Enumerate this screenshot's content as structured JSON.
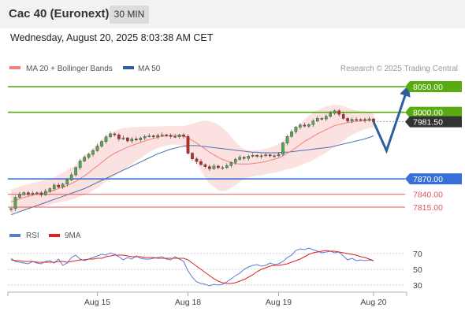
{
  "header": {
    "title": "Cac 40 (Euronext)",
    "timeframe": "30 MIN"
  },
  "timestamp": "Wednesday, August 20, 2025 8:03:38 AM CET",
  "colors": {
    "green_level": "#5aaa12",
    "blue_level": "#3a6fd8",
    "red_level": "#e05858",
    "bollinger_fill": "#fbd9d9",
    "ma20": "#f08080",
    "ma50": "#4a72b0",
    "arrow": "#2d5f9e",
    "candle_up": "#4caf50",
    "candle_down": "#c62828",
    "rsi": "#5b7bd5",
    "rsi_ma": "#e02020"
  },
  "chart_data": [
    {
      "type": "candlestick",
      "legend": [
        {
          "name": "MA 20 + Bollinger Bands",
          "color": "#f08080"
        },
        {
          "name": "MA 50",
          "color": "#2d5f9e"
        }
      ],
      "legend_position": "top-left",
      "watermark": "Research © 2025 Trading Central",
      "ylim": [
        7795,
        8070
      ],
      "levels": [
        {
          "value": 8050.0,
          "label": "8050.00",
          "kind": "resistance",
          "color": "#5aaa12"
        },
        {
          "value": 8000.0,
          "label": "8000.00",
          "kind": "resistance",
          "color": "#5aaa12"
        },
        {
          "value": 7981.5,
          "label": "7981.50",
          "kind": "last-price",
          "color": "#333333"
        },
        {
          "value": 7870.0,
          "label": "7870.00",
          "kind": "pivot",
          "color": "#3a6fd8"
        },
        {
          "value": 7840.0,
          "label": "7840.00",
          "kind": "support",
          "color": "#e05858"
        },
        {
          "value": 7815.0,
          "label": "7815.00",
          "kind": "support",
          "color": "#e05858"
        }
      ],
      "x_ticks": [
        {
          "label": "Aug 15",
          "index": 20
        },
        {
          "label": "Aug 18",
          "index": 41
        },
        {
          "label": "Aug 19",
          "index": 62
        },
        {
          "label": "Aug 20",
          "index": 84
        }
      ],
      "closes": [
        7812,
        7834,
        7840,
        7843,
        7840,
        7842,
        7843,
        7839,
        7846,
        7851,
        7858,
        7854,
        7860,
        7868,
        7878,
        7892,
        7905,
        7912,
        7918,
        7925,
        7934,
        7943,
        7952,
        7958,
        7956,
        7948,
        7950,
        7944,
        7948,
        7946,
        7950,
        7953,
        7954,
        7952,
        7955,
        7956,
        7955,
        7953,
        7952,
        7956,
        7953,
        7920,
        7909,
        7904,
        7898,
        7894,
        7890,
        7895,
        7892,
        7892,
        7896,
        7902,
        7908,
        7912,
        7910,
        7914,
        7916,
        7914,
        7915,
        7917,
        7915,
        7915,
        7918,
        7940,
        7953,
        7962,
        7971,
        7975,
        7973,
        7976,
        7983,
        7988,
        7987,
        7992,
        7998,
        8003,
        7996,
        7988,
        7983,
        7986,
        7985,
        7986,
        7984,
        7987,
        7981.5
      ],
      "ma20": [
        7825,
        7828,
        7831,
        7834,
        7836,
        7838,
        7840,
        7841,
        7843,
        7845,
        7848,
        7851,
        7854,
        7857,
        7861,
        7865,
        7871,
        7876,
        7882,
        7889,
        7895,
        7902,
        7909,
        7915,
        7920,
        7924,
        7928,
        7932,
        7935,
        7938,
        7941,
        7944,
        7947,
        7949,
        7951,
        7953,
        7954,
        7955,
        7955,
        7955,
        7954,
        7950,
        7945,
        7940,
        7934,
        7928,
        7922,
        7917,
        7912,
        7908,
        7905,
        7902,
        7900,
        7899,
        7899,
        7899,
        7900,
        7901,
        7902,
        7904,
        7906,
        7908,
        7911,
        7915,
        7920,
        7925,
        7931,
        7937,
        7943,
        7948,
        7953,
        7958,
        7962,
        7966,
        7970,
        7974,
        7976,
        7978,
        7980,
        7981,
        7982,
        7983,
        7984,
        7985,
        7985
      ],
      "ma50": [
        7800,
        7803,
        7806,
        7809,
        7812,
        7815,
        7818,
        7821,
        7824,
        7827,
        7830,
        7833,
        7836,
        7839,
        7842,
        7845,
        7848,
        7851,
        7855,
        7859,
        7863,
        7867,
        7871,
        7875,
        7879,
        7883,
        7887,
        7891,
        7895,
        7899,
        7903,
        7907,
        7911,
        7915,
        7919,
        7922,
        7925,
        7928,
        7930,
        7932,
        7934,
        7935,
        7935,
        7935,
        7934,
        7933,
        7932,
        7931,
        7930,
        7929,
        7928,
        7927,
        7926,
        7925,
        7924,
        7923,
        7922,
        7922,
        7921,
        7921,
        7921,
        7921,
        7921,
        7922,
        7922,
        7923,
        7924,
        7925,
        7926,
        7927,
        7928,
        7929,
        7930,
        7931,
        7932,
        7934,
        7936,
        7938,
        7940,
        7942,
        7944,
        7946,
        7948,
        7951,
        7954
      ],
      "bollinger_upper": [
        7850,
        7852,
        7855,
        7858,
        7860,
        7862,
        7864,
        7866,
        7868,
        7871,
        7874,
        7878,
        7882,
        7887,
        7892,
        7898,
        7906,
        7914,
        7922,
        7930,
        7938,
        7946,
        7953,
        7959,
        7964,
        7967,
        7969,
        7970,
        7971,
        7971,
        7972,
        7972,
        7972,
        7972,
        7972,
        7973,
        7973,
        7973,
        7973,
        7973,
        7973,
        7975,
        7978,
        7980,
        7982,
        7984,
        7983,
        7980,
        7976,
        7970,
        7962,
        7952,
        7942,
        7934,
        7928,
        7926,
        7925,
        7926,
        7927,
        7929,
        7931,
        7934,
        7938,
        7944,
        7951,
        7960,
        7969,
        7978,
        7986,
        7993,
        7999,
        8004,
        8008,
        8011,
        8013,
        8014,
        8014,
        8012,
        8009,
        8006,
        8004,
        8002,
        8001,
        8000,
        8000
      ],
      "bollinger_lower": [
        7800,
        7804,
        7807,
        7810,
        7812,
        7814,
        7816,
        7816,
        7818,
        7819,
        7822,
        7824,
        7826,
        7827,
        7830,
        7832,
        7836,
        7838,
        7842,
        7848,
        7852,
        7858,
        7865,
        7871,
        7876,
        7881,
        7887,
        7894,
        7899,
        7905,
        7910,
        7916,
        7922,
        7926,
        7930,
        7933,
        7935,
        7937,
        7937,
        7937,
        7935,
        7925,
        7912,
        7900,
        7886,
        7872,
        7861,
        7854,
        7848,
        7846,
        7848,
        7852,
        7858,
        7864,
        7870,
        7872,
        7875,
        7876,
        7877,
        7879,
        7881,
        7882,
        7884,
        7886,
        7889,
        7890,
        7893,
        7896,
        7900,
        7903,
        7907,
        7912,
        7916,
        7921,
        7927,
        7934,
        7938,
        7944,
        7951,
        7956,
        7960,
        7964,
        7967,
        7970,
        7970
      ],
      "forecast_path": [
        {
          "index": 84,
          "value": 7981.5
        },
        {
          "index": 87,
          "value": 7925
        },
        {
          "index": 92,
          "value": 8050
        }
      ]
    },
    {
      "type": "line",
      "legend": [
        {
          "name": "RSI",
          "color": "#5b7bd5"
        },
        {
          "name": "9MA",
          "color": "#e02020"
        }
      ],
      "legend_position": "top-left",
      "ylim": [
        20,
        80
      ],
      "y_ticks": [
        70,
        50,
        30
      ],
      "reference_lines": [
        70,
        50,
        30
      ],
      "rsi": [
        64,
        60,
        59,
        58,
        57,
        60,
        58,
        57,
        60,
        61,
        58,
        63,
        55,
        58,
        65,
        68,
        63,
        61,
        63,
        65,
        67,
        69,
        68,
        71,
        69,
        66,
        62,
        65,
        63,
        67,
        64,
        63,
        63,
        64,
        65,
        66,
        63,
        62,
        66,
        63,
        60,
        48,
        40,
        34,
        32,
        31,
        29,
        31,
        30,
        31,
        34,
        38,
        42,
        45,
        50,
        53,
        55,
        56,
        54,
        55,
        58,
        56,
        57,
        60,
        65,
        68,
        74,
        76,
        75,
        77,
        75,
        73,
        71,
        72,
        73,
        71,
        72,
        67,
        62,
        64,
        61,
        62,
        61,
        62,
        61
      ],
      "rsi_ma": [
        62,
        61,
        61,
        60,
        60,
        60,
        59,
        59,
        59,
        59,
        59,
        60,
        60,
        59,
        60,
        61,
        62,
        62,
        63,
        63,
        64,
        64,
        66,
        67,
        68,
        68,
        68,
        67,
        66,
        66,
        66,
        65,
        65,
        65,
        64,
        64,
        64,
        64,
        64,
        64,
        64,
        62,
        58,
        54,
        50,
        46,
        42,
        38,
        35,
        33,
        32,
        32,
        33,
        35,
        37,
        40,
        43,
        47,
        50,
        52,
        54,
        55,
        55,
        56,
        57,
        59,
        61,
        63,
        66,
        69,
        71,
        72,
        73,
        74,
        73,
        73,
        72,
        71,
        70,
        69,
        68,
        66,
        65,
        63,
        61
      ]
    }
  ]
}
